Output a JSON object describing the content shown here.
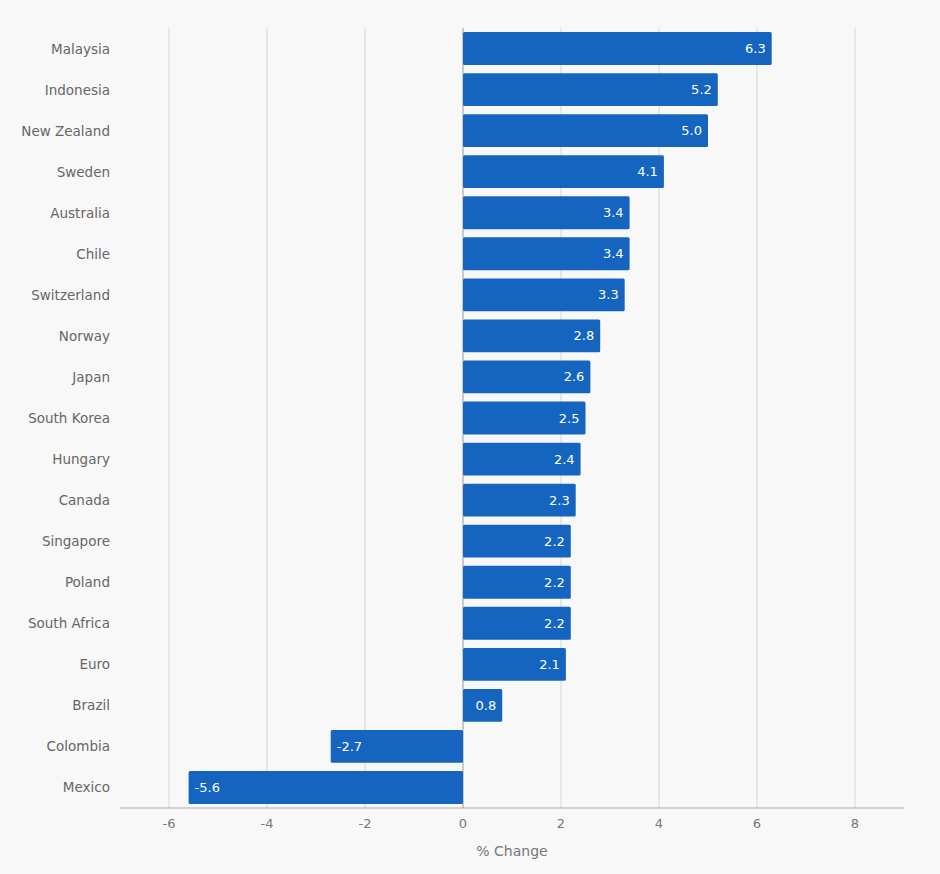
{
  "chart_data": {
    "type": "bar",
    "orientation": "horizontal",
    "categories": [
      "Malaysia",
      "Indonesia",
      "New Zealand",
      "Sweden",
      "Australia",
      "Chile",
      "Switzerland",
      "Norway",
      "Japan",
      "South Korea",
      "Hungary",
      "Canada",
      "Singapore",
      "Poland",
      "South Africa",
      "Euro",
      "Brazil",
      "Colombia",
      "Mexico"
    ],
    "values": [
      6.3,
      5.2,
      5.0,
      4.1,
      3.4,
      3.4,
      3.3,
      2.8,
      2.6,
      2.5,
      2.4,
      2.3,
      2.2,
      2.2,
      2.2,
      2.1,
      0.8,
      -2.7,
      -5.6
    ],
    "value_labels": [
      "6.3",
      "5.2",
      "5.0",
      "4.1",
      "3.4",
      "3.4",
      "3.3",
      "2.8",
      "2.6",
      "2.5",
      "2.4",
      "2.3",
      "2.2",
      "2.2",
      "2.2",
      "2.1",
      "0.8",
      "-2.7",
      "-5.6"
    ],
    "color": "#1565C0",
    "xlabel": "% Change",
    "xlim": [
      -7,
      9
    ],
    "xticks": [
      -6,
      -4,
      -2,
      0,
      2,
      4,
      6,
      8
    ],
    "grid": true,
    "data_labels": true
  }
}
